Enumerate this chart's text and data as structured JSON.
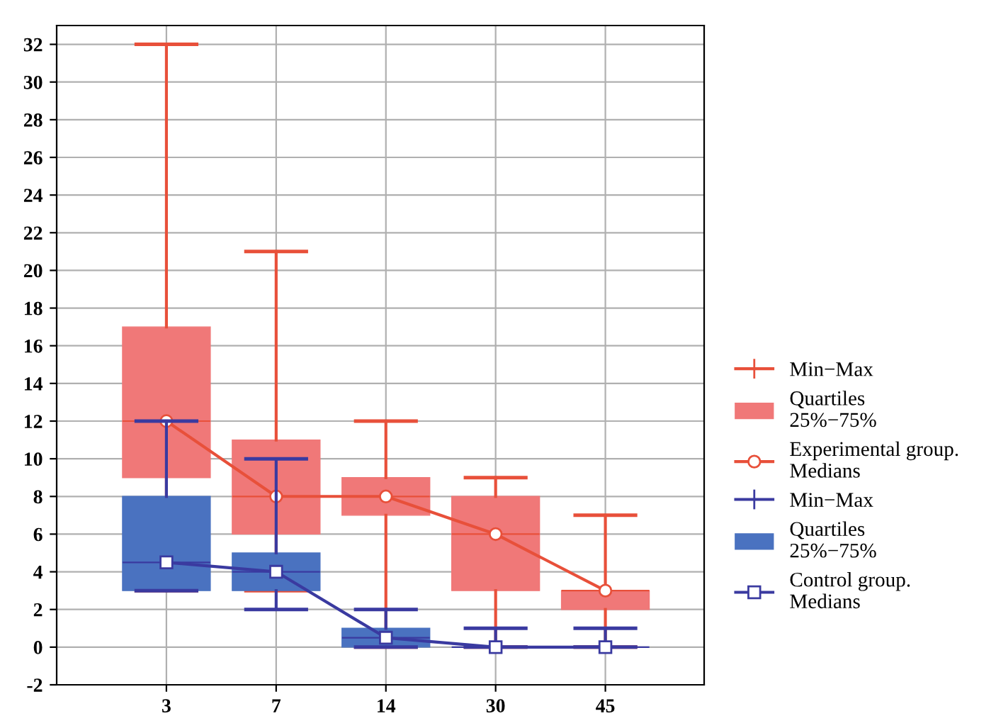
{
  "chart_data": {
    "type": "box",
    "categories": [
      "3",
      "7",
      "14",
      "30",
      "45"
    ],
    "annotations": [
      "Min−Max",
      "Min−Max"
    ],
    "series": [
      {
        "name": "Quartiles\n25%−75%",
        "color": "#f07878",
        "boxes": [
          {
            "low": 3,
            "q1": 9,
            "median": 12,
            "q3": 17,
            "high": 32
          },
          {
            "low": 3,
            "q1": 6,
            "median": 8,
            "q3": 11,
            "high": 21
          },
          {
            "low": 0,
            "q1": 7,
            "median": 8,
            "q3": 9,
            "high": 12
          },
          {
            "low": 0,
            "q1": 3,
            "median": 6,
            "q3": 8,
            "high": 9
          },
          {
            "low": 0,
            "q1": 2,
            "median": 3,
            "q3": 3,
            "high": 7
          }
        ]
      },
      {
        "type": "line",
        "name": "Experimental group.\nMedians",
        "color": "#e8503a",
        "marker": "circle",
        "values": [
          12,
          8,
          8,
          6,
          3
        ]
      },
      {
        "name": "Quartiles\n25%−75%",
        "color": "#4a72c0",
        "boxes": [
          {
            "low": 3,
            "q1": 3,
            "median": 4.5,
            "q3": 8,
            "high": 12
          },
          {
            "low": 2,
            "q1": 3,
            "median": 4,
            "q3": 5,
            "high": 10
          },
          {
            "low": 0,
            "q1": 0,
            "median": 0.5,
            "q3": 1,
            "high": 2
          },
          {
            "low": 0,
            "q1": 0,
            "median": 0,
            "q3": 0,
            "high": 1
          },
          {
            "low": 0,
            "q1": 0,
            "median": 0,
            "q3": 0,
            "high": 1
          }
        ]
      },
      {
        "type": "line",
        "name": "Control group.\nMedians",
        "color": "#3a3aa0",
        "marker": "square",
        "values": [
          4.5,
          4,
          0.5,
          0,
          0
        ]
      }
    ],
    "ylim": [
      -2,
      33
    ],
    "yticks": [
      -2,
      0,
      2,
      4,
      6,
      8,
      10,
      12,
      14,
      16,
      18,
      20,
      22,
      24,
      26,
      28,
      30,
      32
    ],
    "grid": true,
    "legend": "right"
  }
}
